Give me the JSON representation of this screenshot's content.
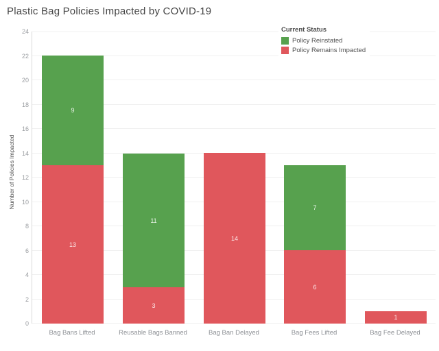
{
  "title": "Plastic Bag Policies Impacted by COVID-19",
  "legend": {
    "title": "Current Status",
    "items": [
      {
        "label": "Policy Reinstated",
        "color": "#57a14e"
      },
      {
        "label": "Policy Remains Impacted",
        "color": "#e0575c"
      }
    ]
  },
  "chart_data": {
    "type": "bar",
    "stacked": true,
    "title": "Plastic Bag Policies Impacted by COVID-19",
    "categories": [
      "Bag Bans Lifted",
      "Reusable Bags Banned",
      "Bag Ban Delayed",
      "Bag Fees Lifted",
      "Bag Fee Delayed"
    ],
    "series": [
      {
        "name": "Policy Remains Impacted",
        "color": "#e0575c",
        "values": [
          13,
          3,
          14,
          6,
          1
        ]
      },
      {
        "name": "Policy Reinstated",
        "color": "#57a14e",
        "values": [
          9,
          11,
          0,
          7,
          0
        ]
      }
    ],
    "xlabel": "",
    "ylabel": "Number of Policies Impacted",
    "ylim": [
      0,
      24
    ],
    "ytick_step": 2,
    "grid": true,
    "legend_title": "Current Status",
    "legend_position": "top-right",
    "bar_value_labels": true,
    "colors": {
      "grid": "#f0f0f0",
      "axis_line": "#d8d8d8",
      "tick_label": "#9a9da1",
      "axis_title": "#4d4d4d",
      "title": "#464646",
      "bar_label": "rgba(255,255,255,0.88)"
    }
  }
}
